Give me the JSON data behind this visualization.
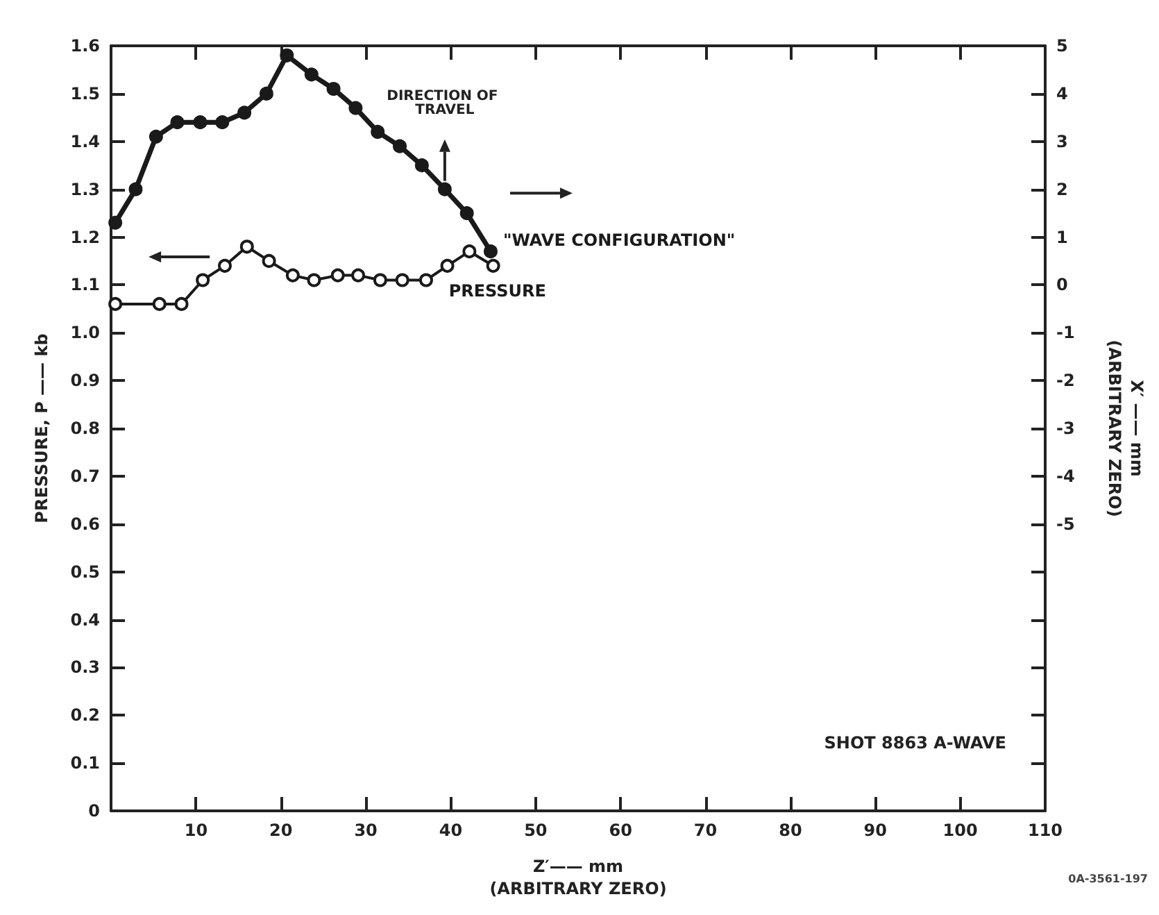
{
  "chart_data": {
    "type": "line",
    "xlabel": "Z′—— mm\n(ARBITRARY ZERO)",
    "ylabel": "PRESSURE, P —— kb",
    "y2label": "X′ —— mm\n(ARBITRARY ZERO)",
    "series": [
      {
        "name": "\"WAVE CONFIGURATION\"",
        "color": "#1a1a1a",
        "axis": "y2",
        "marker": "circle",
        "x": [
          0.5,
          2.9,
          5.3,
          7.8,
          10.5,
          13.1,
          15.7,
          18.3,
          20.7,
          23.6,
          26.2,
          28.8,
          31.4,
          34.0,
          36.6,
          39.3,
          41.9,
          44.7
        ],
        "values": [
          1.3,
          2.0,
          3.1,
          3.4,
          3.4,
          3.4,
          3.6,
          4.0,
          4.8,
          4.4,
          4.1,
          3.7,
          3.2,
          2.9,
          2.5,
          2.0,
          1.5,
          0.7
        ]
      },
      {
        "name": "PRESSURE",
        "color": "#1a1a1a",
        "marker": "circle",
        "x": [
          0.5,
          5.7,
          8.3,
          10.8,
          13.4,
          16.0,
          18.6,
          21.4,
          23.9,
          26.7,
          29.1,
          31.7,
          34.3,
          37.1,
          39.6,
          42.2,
          45.0
        ],
        "values": [
          1.06,
          1.06,
          1.06,
          1.11,
          1.14,
          1.18,
          1.15,
          1.12,
          1.11,
          1.12,
          1.12,
          1.11,
          1.11,
          1.11,
          1.14,
          1.17,
          1.14
        ]
      }
    ],
    "xlim": [
      0,
      110
    ],
    "xticks": [
      {
        "value": 0,
        "label": null
      },
      10,
      20,
      30,
      40,
      50,
      60,
      70,
      80,
      90,
      100,
      110
    ],
    "ylim": [
      0,
      1.6
    ],
    "yticks": [
      0,
      0.1,
      0.2,
      0.3,
      0.4,
      0.5,
      0.6,
      0.7,
      0.8,
      0.9,
      {
        "value": 1,
        "label": "1.0"
      },
      1.1,
      1.2,
      1.3,
      1.4,
      1.5,
      1.6
    ],
    "y2lim": [
      -11,
      5
    ],
    "y2ticks": [
      {
        "value": -11,
        "label": null
      },
      {
        "value": -10,
        "label": null
      },
      {
        "value": -9,
        "label": null
      },
      {
        "value": -8,
        "label": null
      },
      {
        "value": -7,
        "label": null
      },
      {
        "value": -6,
        "label": null
      },
      -5,
      -4,
      -3,
      -2,
      -1,
      0,
      1,
      2,
      3,
      4,
      5
    ],
    "annotations": [
      "DIRECTION OF TRAVEL",
      "SHOT 8863 A-WAVE",
      "0A-3561-197"
    ],
    "legend": false,
    "grid": false
  }
}
